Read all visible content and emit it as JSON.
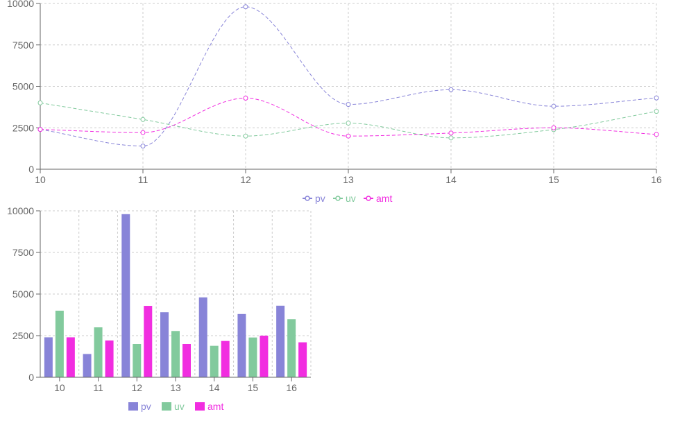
{
  "chart_data": [
    {
      "type": "line",
      "x": [
        10,
        11,
        12,
        13,
        14,
        15,
        16
      ],
      "xlim": [
        10,
        16
      ],
      "ylim": [
        0,
        10000
      ],
      "yticks": [
        0,
        2500,
        5000,
        7500,
        10000
      ],
      "grid": true,
      "legend": "bottom-center",
      "line_style": "dashed",
      "series": [
        {
          "name": "pv",
          "color": "#8884d8",
          "values": [
            2400,
            1398,
            9800,
            3908,
            4800,
            3800,
            4300
          ]
        },
        {
          "name": "uv",
          "color": "#82ca9d",
          "values": [
            4000,
            3000,
            2000,
            2780,
            1890,
            2390,
            3490
          ]
        },
        {
          "name": "amt",
          "color": "#f12de0",
          "values": [
            2400,
            2210,
            4290,
            2000,
            2181,
            2500,
            2100
          ]
        }
      ]
    },
    {
      "type": "bar",
      "categories": [
        "10",
        "11",
        "12",
        "13",
        "14",
        "15",
        "16"
      ],
      "ylim": [
        0,
        10000
      ],
      "yticks": [
        0,
        2500,
        5000,
        7500,
        10000
      ],
      "grid": true,
      "legend": "bottom-center",
      "series": [
        {
          "name": "pv",
          "color": "#8884d8",
          "values": [
            2400,
            1398,
            9800,
            3908,
            4800,
            3800,
            4300
          ]
        },
        {
          "name": "uv",
          "color": "#82ca9d",
          "values": [
            4000,
            3000,
            2000,
            2780,
            1890,
            2390,
            3490
          ]
        },
        {
          "name": "amt",
          "color": "#f12de0",
          "values": [
            2400,
            2210,
            4290,
            2000,
            2181,
            2500,
            2100
          ]
        }
      ]
    }
  ]
}
